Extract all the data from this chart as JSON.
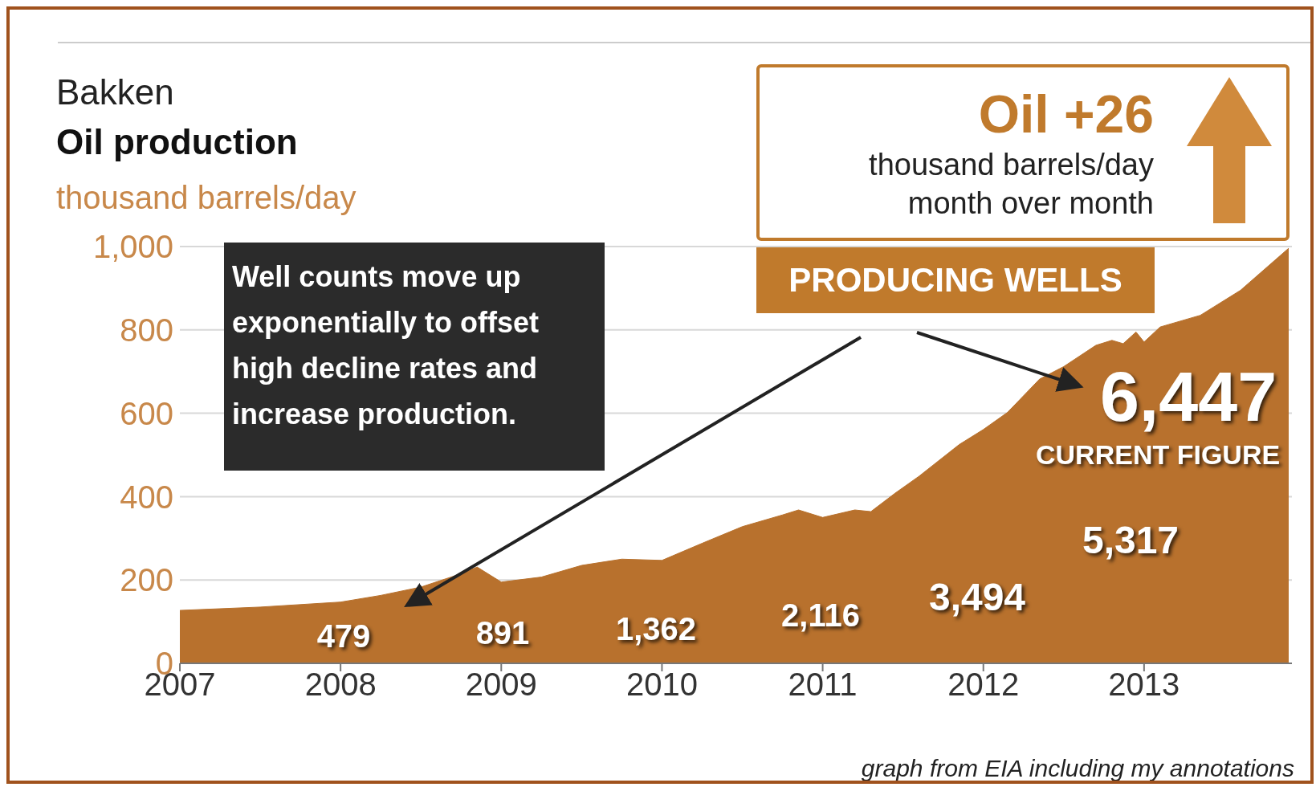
{
  "chart_data": {
    "type": "area",
    "title": "Bakken",
    "subtitle": "Oil production",
    "ylabel": "thousand barrels/day",
    "x": [
      2007,
      2007.5,
      2008,
      2008.25,
      2008.5,
      2008.75,
      2008.85,
      2009,
      2009.25,
      2009.5,
      2009.75,
      2010,
      2010.25,
      2010.5,
      2010.75,
      2010.85,
      2011,
      2011.2,
      2011.3,
      2011.45,
      2011.6,
      2011.85,
      2012,
      2012.15,
      2012.35,
      2012.5,
      2012.7,
      2012.8,
      2012.87,
      2012.95,
      2013,
      2013.1,
      2013.35,
      2013.6,
      2013.9
    ],
    "values": [
      127,
      135,
      147,
      163,
      183,
      215,
      231,
      195,
      207,
      235,
      250,
      247,
      288,
      328,
      356,
      368,
      350,
      368,
      364,
      408,
      449,
      525,
      561,
      602,
      682,
      712,
      763,
      775,
      767,
      795,
      771,
      807,
      835,
      895,
      996
    ],
    "color": "#b8712d",
    "xlim": [
      2007,
      2013.92
    ],
    "xticks": [
      2007,
      2008,
      2009,
      2010,
      2011,
      2012,
      2013
    ],
    "ylim": [
      0,
      1000
    ],
    "yticks": [
      0,
      {
        "value": 200,
        "label": "200"
      },
      {
        "value": 400,
        "label": "400"
      },
      {
        "value": 600,
        "label": "600"
      },
      {
        "value": 800,
        "label": "800"
      },
      {
        "value": 1000,
        "label": "1,000"
      }
    ],
    "grid": "y",
    "annotations": [
      "Oil +26",
      "thousand barrels/day",
      "month over month",
      "PRODUCING WELLS",
      "Well counts move up exponentially to offset high decline rates and increase production.",
      "CURRENT FIGURE",
      "graph from EIA including my annotations",
      "479",
      "891",
      "1,362",
      "2,116",
      "3,494",
      "5,317",
      "6,447"
    ]
  }
}
